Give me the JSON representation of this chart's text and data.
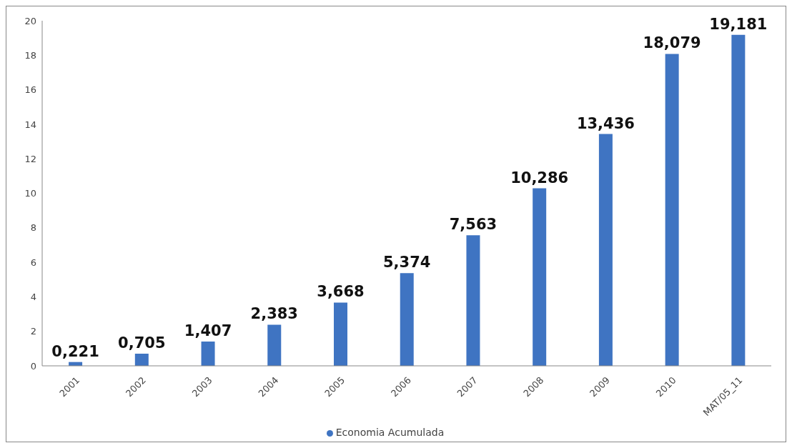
{
  "chart_data": {
    "type": "bar",
    "categories": [
      "2001",
      "2002",
      "2003",
      "2004",
      "2005",
      "2006",
      "2007",
      "2008",
      "2009",
      "2010",
      "MAT/05_11"
    ],
    "series": [
      {
        "name": "Economia Acumulada",
        "color": "#3f74c2",
        "values": [
          0.221,
          0.705,
          1.407,
          2.383,
          3.668,
          5.374,
          7.563,
          10.286,
          13.436,
          18.079,
          19.181
        ],
        "value_labels": [
          "0,221",
          "0,705",
          "1,407",
          "2,383",
          "3,668",
          "5,374",
          "7,563",
          "10,286",
          "13,436",
          "18,079",
          "19,181"
        ]
      }
    ],
    "ylim": [
      0,
      20
    ],
    "yticks": [
      0,
      2,
      4,
      6,
      8,
      10,
      12,
      14,
      16,
      18,
      20
    ],
    "grid": false,
    "legend": "bottom"
  }
}
